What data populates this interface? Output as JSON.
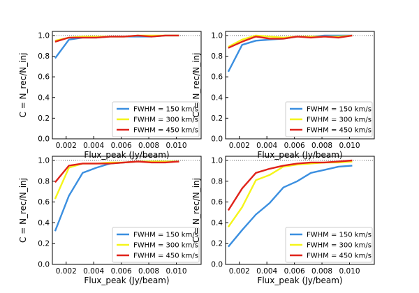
{
  "chart_data": [
    {
      "type": "line",
      "panel": "top-left",
      "xlabel": "Flux_peak (Jy/beam)",
      "ylabel": "C = N_rec/N_inj",
      "xlim": [
        0.001,
        0.0118
      ],
      "ylim": [
        0.0,
        1.04
      ],
      "x_ticks": [
        0.002,
        0.004,
        0.006,
        0.008,
        0.01
      ],
      "x_tick_labels": [
        "0.002",
        "0.004",
        "0.006",
        "0.008",
        "0.010"
      ],
      "y_ticks": [
        0.0,
        0.2,
        0.4,
        0.6,
        0.8,
        1.0
      ],
      "y_tick_labels": [
        "0.0",
        "0.2",
        "0.4",
        "0.6",
        "0.8",
        "1.0"
      ],
      "legend_position": "bottom-right",
      "x": [
        0.0012,
        0.0022,
        0.0032,
        0.0042,
        0.0052,
        0.0062,
        0.0072,
        0.0082,
        0.0092,
        0.0102
      ],
      "series": [
        {
          "name": "FWHM = 150 km/s",
          "color": "#3b8fe0",
          "values": [
            0.78,
            0.96,
            0.98,
            0.98,
            0.99,
            0.99,
            0.99,
            0.99,
            1.0,
            1.0
          ]
        },
        {
          "name": "FWHM = 300 km/s",
          "color": "#f5f51a",
          "values": [
            0.95,
            0.98,
            0.99,
            0.99,
            0.99,
            0.99,
            1.0,
            1.0,
            1.0,
            1.0
          ]
        },
        {
          "name": "FWHM = 450 km/s",
          "color": "#e0231a",
          "values": [
            0.94,
            0.98,
            0.98,
            0.98,
            0.99,
            0.99,
            1.0,
            0.99,
            1.0,
            1.0
          ]
        }
      ]
    },
    {
      "type": "line",
      "panel": "top-right",
      "xlabel": "Flux_peak (Jy/beam)",
      "ylabel": "C = N_rec/N_inj",
      "xlim": [
        0.001,
        0.0118
      ],
      "ylim": [
        0.0,
        1.04
      ],
      "x_ticks": [
        0.002,
        0.004,
        0.006,
        0.008,
        0.01
      ],
      "x_tick_labels": [
        "0.002",
        "0.004",
        "0.006",
        "0.008",
        "0.010"
      ],
      "y_ticks": [
        0.0,
        0.2,
        0.4,
        0.6,
        0.8,
        1.0
      ],
      "y_tick_labels": [
        "0.0",
        "0.2",
        "0.4",
        "0.6",
        "0.8",
        "1.0"
      ],
      "legend_position": "bottom-right",
      "x": [
        0.0012,
        0.0022,
        0.0032,
        0.0042,
        0.0052,
        0.0062,
        0.0072,
        0.0082,
        0.0092,
        0.0102
      ],
      "series": [
        {
          "name": "FWHM = 150 km/s",
          "color": "#3b8fe0",
          "values": [
            0.65,
            0.91,
            0.95,
            0.96,
            0.97,
            0.99,
            0.99,
            1.0,
            1.0,
            1.0
          ]
        },
        {
          "name": "FWHM = 300 km/s",
          "color": "#f5f51a",
          "values": [
            0.89,
            0.96,
            1.0,
            0.99,
            0.98,
            0.99,
            0.99,
            0.99,
            0.99,
            1.0
          ]
        },
        {
          "name": "FWHM = 450 km/s",
          "color": "#e0231a",
          "values": [
            0.88,
            0.94,
            0.99,
            0.97,
            0.97,
            0.99,
            0.98,
            0.99,
            0.98,
            1.0
          ]
        }
      ]
    },
    {
      "type": "line",
      "panel": "bottom-left",
      "xlabel": "Flux_peak (Jy/beam)",
      "ylabel": "C = N_rec/N_inj",
      "xlim": [
        0.001,
        0.0118
      ],
      "ylim": [
        0.0,
        1.04
      ],
      "x_ticks": [
        0.002,
        0.004,
        0.006,
        0.008,
        0.01
      ],
      "x_tick_labels": [
        "0.002",
        "0.004",
        "0.006",
        "0.008",
        "0.010"
      ],
      "y_ticks": [
        0.0,
        0.2,
        0.4,
        0.6,
        0.8,
        1.0
      ],
      "y_tick_labels": [
        "0.0",
        "0.2",
        "0.4",
        "0.6",
        "0.8",
        "1.0"
      ],
      "legend_position": "bottom-right",
      "x": [
        0.0012,
        0.0022,
        0.0032,
        0.0042,
        0.0052,
        0.0062,
        0.0072,
        0.0082,
        0.0092,
        0.0102
      ],
      "series": [
        {
          "name": "FWHM = 150 km/s",
          "color": "#3b8fe0",
          "values": [
            0.32,
            0.66,
            0.88,
            0.93,
            0.97,
            0.98,
            0.99,
            0.99,
            0.99,
            0.99
          ]
        },
        {
          "name": "FWHM = 300 km/s",
          "color": "#f5f51a",
          "values": [
            0.63,
            0.93,
            0.97,
            0.97,
            0.98,
            0.98,
            0.99,
            0.99,
            0.99,
            0.99
          ]
        },
        {
          "name": "FWHM = 450 km/s",
          "color": "#e0231a",
          "values": [
            0.79,
            0.95,
            0.97,
            0.97,
            0.97,
            0.98,
            0.99,
            0.98,
            0.98,
            0.99
          ]
        }
      ]
    },
    {
      "type": "line",
      "panel": "bottom-right",
      "xlabel": "Flux_peak (Jy/beam)",
      "ylabel": "C = N_rec/N_inj",
      "xlim": [
        0.001,
        0.0118
      ],
      "ylim": [
        0.0,
        1.04
      ],
      "x_ticks": [
        0.002,
        0.004,
        0.006,
        0.008,
        0.01
      ],
      "x_tick_labels": [
        "0.002",
        "0.004",
        "0.006",
        "0.008",
        "0.010"
      ],
      "y_ticks": [
        0.0,
        0.2,
        0.4,
        0.6,
        0.8,
        1.0
      ],
      "y_tick_labels": [
        "0.0",
        "0.2",
        "0.4",
        "0.6",
        "0.8",
        "1.0"
      ],
      "legend_position": "bottom-right",
      "x": [
        0.0012,
        0.0022,
        0.0032,
        0.0042,
        0.0052,
        0.0062,
        0.0072,
        0.0082,
        0.0092,
        0.0102
      ],
      "series": [
        {
          "name": "FWHM = 150 km/s",
          "color": "#3b8fe0",
          "values": [
            0.17,
            0.33,
            0.48,
            0.59,
            0.74,
            0.8,
            0.88,
            0.91,
            0.94,
            0.95
          ]
        },
        {
          "name": "FWHM = 300 km/s",
          "color": "#f5f51a",
          "values": [
            0.36,
            0.55,
            0.81,
            0.86,
            0.94,
            0.96,
            0.97,
            0.98,
            0.98,
            0.99
          ]
        },
        {
          "name": "FWHM = 450 km/s",
          "color": "#e0231a",
          "values": [
            0.52,
            0.73,
            0.88,
            0.92,
            0.95,
            0.97,
            0.98,
            0.98,
            0.99,
            1.0
          ]
        }
      ]
    }
  ]
}
